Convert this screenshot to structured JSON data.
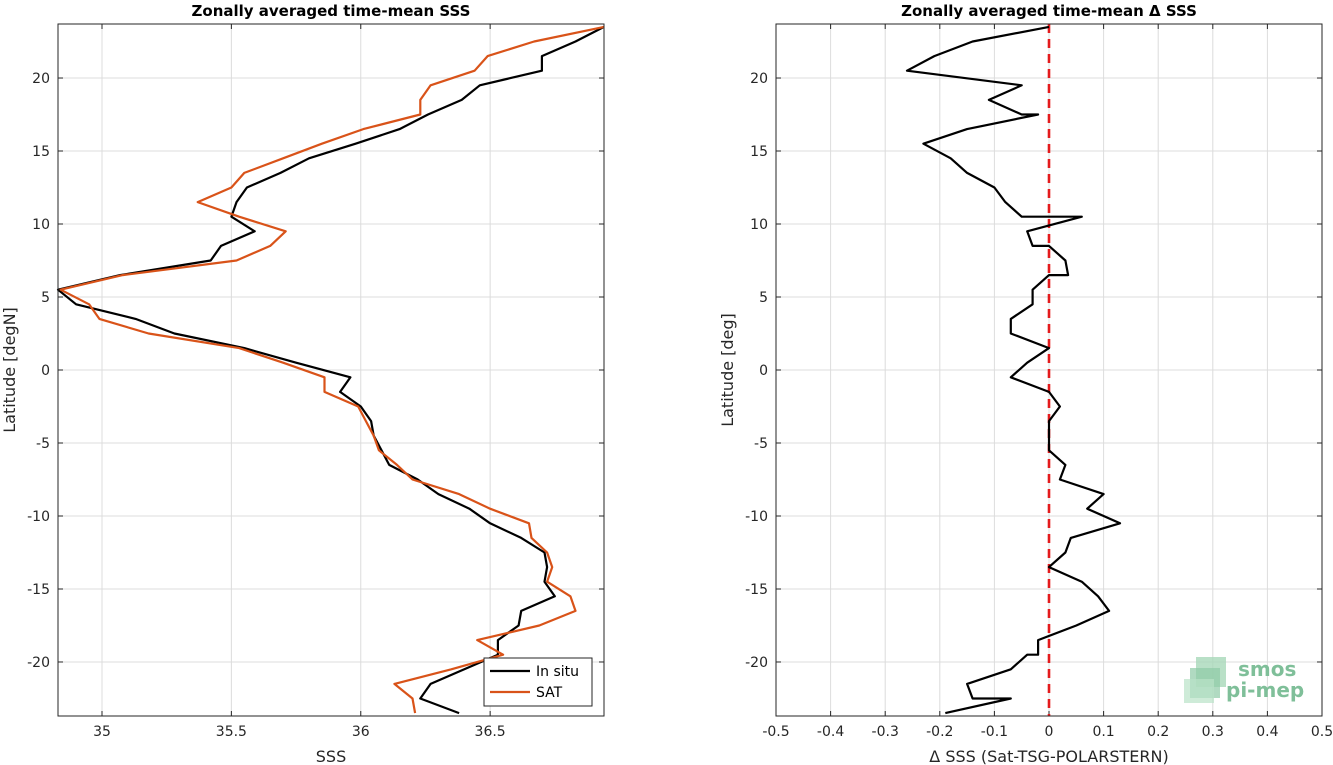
{
  "chart_data": [
    {
      "type": "line",
      "title": "Zonally averaged time-mean SSS",
      "xlabel": "SSS",
      "ylabel": "Latitude [degN]",
      "xlim": [
        34.83,
        36.94
      ],
      "ylim": [
        -23.7,
        23.7
      ],
      "xticks": [
        35,
        35.5,
        36,
        36.5
      ],
      "xtick_labels": [
        "35",
        "35.5",
        "36",
        "36.5"
      ],
      "yticks": [
        -20,
        -15,
        -10,
        -5,
        0,
        5,
        10,
        15,
        20
      ],
      "ytick_labels": [
        "-20",
        "-15",
        "-10",
        "-5",
        "0",
        "5",
        "10",
        "15",
        "20"
      ],
      "grid": true,
      "legend": {
        "position": "bottom-right",
        "entries": [
          "In situ",
          "SAT"
        ]
      },
      "series": [
        {
          "name": "In situ",
          "color": "#000000",
          "points": [
            [
              36.94,
              23.5
            ],
            [
              36.83,
              22.5
            ],
            [
              36.7,
              21.5
            ],
            [
              36.7,
              20.5
            ],
            [
              36.46,
              19.5
            ],
            [
              36.39,
              18.5
            ],
            [
              36.26,
              17.5
            ],
            [
              36.15,
              16.5
            ],
            [
              35.98,
              15.5
            ],
            [
              35.8,
              14.5
            ],
            [
              35.69,
              13.5
            ],
            [
              35.56,
              12.5
            ],
            [
              35.52,
              11.5
            ],
            [
              35.5,
              10.5
            ],
            [
              35.59,
              9.5
            ],
            [
              35.46,
              8.5
            ],
            [
              35.42,
              7.5
            ],
            [
              35.07,
              6.5
            ],
            [
              34.83,
              5.5
            ],
            [
              34.9,
              4.5
            ],
            [
              35.13,
              3.5
            ],
            [
              35.28,
              2.5
            ],
            [
              35.55,
              1.5
            ],
            [
              35.75,
              0.5
            ],
            [
              35.96,
              -0.5
            ],
            [
              35.92,
              -1.5
            ],
            [
              36.0,
              -2.5
            ],
            [
              36.04,
              -3.5
            ],
            [
              36.05,
              -4.5
            ],
            [
              36.08,
              -5.5
            ],
            [
              36.11,
              -6.5
            ],
            [
              36.22,
              -7.5
            ],
            [
              36.3,
              -8.5
            ],
            [
              36.42,
              -9.5
            ],
            [
              36.5,
              -10.5
            ],
            [
              36.62,
              -11.5
            ],
            [
              36.71,
              -12.5
            ],
            [
              36.72,
              -13.5
            ],
            [
              36.71,
              -14.5
            ],
            [
              36.75,
              -15.5
            ],
            [
              36.62,
              -16.5
            ],
            [
              36.61,
              -17.5
            ],
            [
              36.53,
              -18.5
            ],
            [
              36.53,
              -19.5
            ],
            [
              36.4,
              -20.5
            ],
            [
              36.27,
              -21.5
            ],
            [
              36.23,
              -22.5
            ],
            [
              36.38,
              -23.5
            ]
          ]
        },
        {
          "name": "SAT",
          "color": "#d95319",
          "points": [
            [
              36.94,
              23.5
            ],
            [
              36.67,
              22.5
            ],
            [
              36.49,
              21.5
            ],
            [
              36.44,
              20.5
            ],
            [
              36.27,
              19.5
            ],
            [
              36.23,
              18.5
            ],
            [
              36.23,
              17.5
            ],
            [
              36.01,
              16.5
            ],
            [
              35.85,
              15.5
            ],
            [
              35.7,
              14.5
            ],
            [
              35.55,
              13.5
            ],
            [
              35.5,
              12.5
            ],
            [
              35.37,
              11.5
            ],
            [
              35.53,
              10.5
            ],
            [
              35.71,
              9.5
            ],
            [
              35.65,
              8.5
            ],
            [
              35.52,
              7.5
            ],
            [
              35.08,
              6.5
            ],
            [
              34.84,
              5.5
            ],
            [
              34.95,
              4.5
            ],
            [
              34.99,
              3.5
            ],
            [
              35.18,
              2.5
            ],
            [
              35.53,
              1.5
            ],
            [
              35.7,
              0.5
            ],
            [
              35.86,
              -0.5
            ],
            [
              35.86,
              -1.5
            ],
            [
              35.99,
              -2.5
            ],
            [
              36.02,
              -3.5
            ],
            [
              36.05,
              -4.5
            ],
            [
              36.07,
              -5.5
            ],
            [
              36.14,
              -6.5
            ],
            [
              36.2,
              -7.5
            ],
            [
              36.38,
              -8.5
            ],
            [
              36.5,
              -9.5
            ],
            [
              36.65,
              -10.5
            ],
            [
              36.66,
              -11.5
            ],
            [
              36.72,
              -12.5
            ],
            [
              36.74,
              -13.5
            ],
            [
              36.72,
              -14.5
            ],
            [
              36.81,
              -15.5
            ],
            [
              36.83,
              -16.5
            ],
            [
              36.69,
              -17.5
            ],
            [
              36.45,
              -18.5
            ],
            [
              36.55,
              -19.5
            ],
            [
              36.35,
              -20.5
            ],
            [
              36.13,
              -21.5
            ],
            [
              36.2,
              -22.5
            ],
            [
              36.21,
              -23.5
            ]
          ]
        }
      ]
    },
    {
      "type": "line",
      "title": "Zonally averaged time-mean Δ SSS",
      "xlabel": "Δ SSS (Sat-TSG-POLARSTERN)",
      "ylabel": "Latitude [deg]",
      "xlim": [
        -0.5,
        0.5
      ],
      "ylim": [
        -23.7,
        23.7
      ],
      "xticks": [
        -0.5,
        -0.4,
        -0.3,
        -0.2,
        -0.1,
        0,
        0.1,
        0.2,
        0.3,
        0.4,
        0.5
      ],
      "xtick_labels": [
        "-0.5",
        "-0.4",
        "-0.3",
        "-0.2",
        "-0.1",
        "0",
        "0.1",
        "0.2",
        "0.3",
        "0.4",
        "0.5"
      ],
      "yticks": [
        -20,
        -15,
        -10,
        -5,
        0,
        5,
        10,
        15,
        20
      ],
      "ytick_labels": [
        "-20",
        "-15",
        "-10",
        "-5",
        "0",
        "5",
        "10",
        "15",
        "20"
      ],
      "grid": true,
      "reference_line": {
        "x": 0,
        "color": "#e41a1c",
        "style": "dashed"
      },
      "series": [
        {
          "color": "#000000",
          "points": [
            [
              0.0,
              23.5
            ],
            [
              -0.14,
              22.5
            ],
            [
              -0.21,
              21.5
            ],
            [
              -0.26,
              20.5
            ],
            [
              -0.05,
              19.5
            ],
            [
              -0.11,
              18.5
            ],
            [
              -0.05,
              17.5
            ],
            [
              -0.02,
              17.5
            ],
            [
              -0.15,
              16.5
            ],
            [
              -0.23,
              15.5
            ],
            [
              -0.18,
              14.5
            ],
            [
              -0.15,
              13.5
            ],
            [
              -0.1,
              12.5
            ],
            [
              -0.08,
              11.5
            ],
            [
              -0.05,
              10.5
            ],
            [
              0.06,
              10.5
            ],
            [
              -0.04,
              9.5
            ],
            [
              -0.03,
              8.5
            ],
            [
              0.0,
              8.5
            ],
            [
              0.03,
              7.5
            ],
            [
              0.035,
              6.5
            ],
            [
              0.0,
              6.5
            ],
            [
              -0.03,
              5.5
            ],
            [
              -0.03,
              4.5
            ],
            [
              -0.07,
              3.5
            ],
            [
              -0.07,
              2.5
            ],
            [
              0.0,
              1.5
            ],
            [
              -0.04,
              0.5
            ],
            [
              -0.07,
              -0.5
            ],
            [
              0.0,
              -1.5
            ],
            [
              0.02,
              -2.5
            ],
            [
              0.0,
              -3.5
            ],
            [
              0.0,
              -4.5
            ],
            [
              0.0,
              -5.5
            ],
            [
              0.03,
              -6.5
            ],
            [
              0.02,
              -7.5
            ],
            [
              0.1,
              -8.5
            ],
            [
              0.07,
              -9.5
            ],
            [
              0.13,
              -10.5
            ],
            [
              0.04,
              -11.5
            ],
            [
              0.03,
              -12.5
            ],
            [
              0.0,
              -13.5
            ],
            [
              0.06,
              -14.5
            ],
            [
              0.09,
              -15.5
            ],
            [
              0.11,
              -16.5
            ],
            [
              0.05,
              -17.5
            ],
            [
              -0.02,
              -18.5
            ],
            [
              -0.02,
              -19.5
            ],
            [
              -0.04,
              -19.5
            ],
            [
              -0.07,
              -20.5
            ],
            [
              -0.15,
              -21.5
            ],
            [
              -0.14,
              -22.5
            ],
            [
              -0.07,
              -22.5
            ],
            [
              -0.19,
              -23.5
            ]
          ]
        }
      ]
    }
  ],
  "logo": {
    "line1": "smos",
    "line2": "pi-mep"
  }
}
